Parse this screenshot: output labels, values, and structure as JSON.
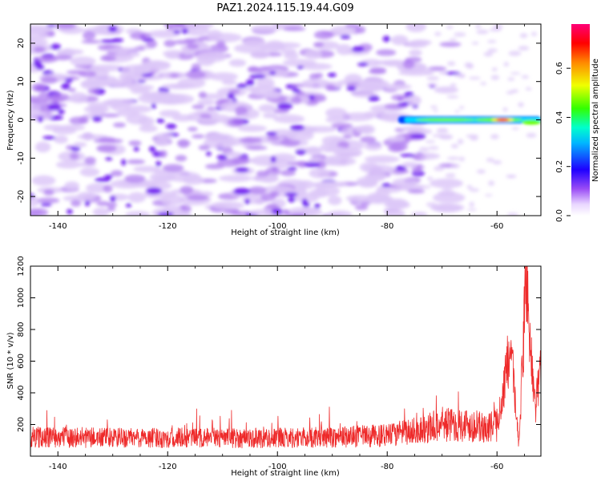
{
  "title": "PAZ1.2024.115.19.44.G09",
  "colors": {
    "snr_line": "#ee2a2a",
    "spec_low": "#ddc8f8",
    "spec_mid": "#b07ef0",
    "spec_high": "#6a10f0",
    "signal": [
      "#0044ff",
      "#00ddff",
      "#66ff00",
      "#ffee00",
      "#ff2200"
    ]
  },
  "chart_data": [
    {
      "type": "heatmap",
      "title": "PAZ1.2024.115.19.44.G09",
      "xlabel": "Height of straight line (km)",
      "ylabel": "Frequency (Hz)",
      "xlim": [
        -145,
        -52
      ],
      "ylim": [
        -25,
        25
      ],
      "x_ticks": [
        -140,
        -120,
        -100,
        -80,
        -60
      ],
      "y_ticks": [
        -20,
        -10,
        0,
        10,
        20
      ],
      "colorbar": {
        "label": "Normalized spectral amplitude",
        "range": [
          0.0,
          0.78
        ],
        "ticks": [
          "0.0",
          "0.2",
          "0.4",
          "0.6"
        ],
        "colormap": "gist_rainbow_r"
      },
      "signal_band": {
        "frequency_hz": 0,
        "start_km": -78,
        "end_km": -52,
        "peak_km": -59,
        "peak_amplitude": 0.7
      },
      "noise_floor_amplitude": 0.1
    },
    {
      "type": "line",
      "xlabel": "Height of straight line (km)",
      "ylabel": "SNR (10 * v/v)",
      "xlim": [
        -145,
        -52
      ],
      "ylim": [
        0,
        1200
      ],
      "x_ticks": [
        -140,
        -120,
        -100,
        -80,
        -60
      ],
      "y_ticks": [
        200,
        400,
        600,
        800,
        1000,
        1200
      ],
      "series": [
        {
          "x": [
            -145,
            -140,
            -130,
            -120,
            -110,
            -100,
            -90,
            -80,
            -75,
            -70,
            -65,
            -62,
            -60,
            -59,
            -58,
            -57,
            -56,
            -55,
            -54.5,
            -54,
            -53,
            -52
          ],
          "y": [
            120,
            120,
            115,
            115,
            115,
            115,
            120,
            130,
            160,
            200,
            200,
            170,
            200,
            380,
            600,
            500,
            60,
            900,
            1200,
            700,
            300,
            600
          ]
        }
      ]
    }
  ]
}
